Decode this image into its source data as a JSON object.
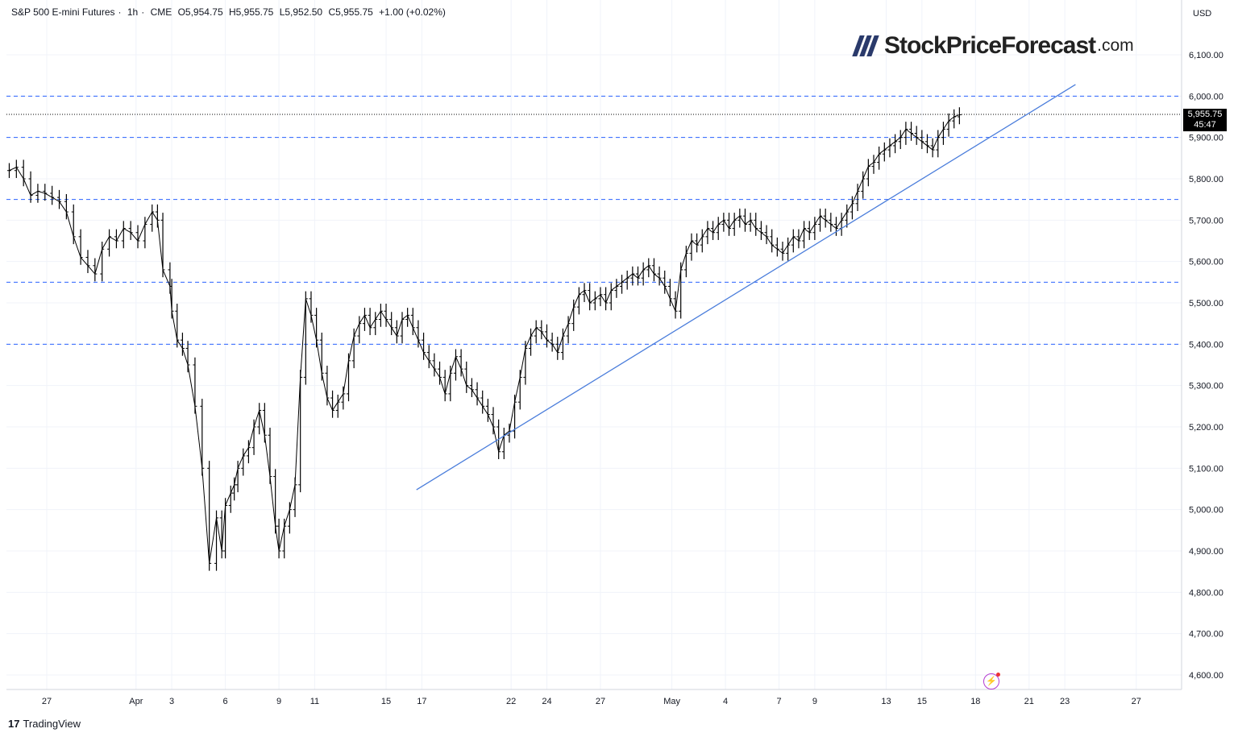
{
  "header": {
    "symbol": "S&P 500 E-mini Futures",
    "interval": "1h",
    "exchange": "CME",
    "open": "O5,954.75",
    "high": "H5,955.75",
    "low": "L5,952.50",
    "close": "C5,955.75",
    "change": "+1.00 (+0.02%)"
  },
  "logo": {
    "name": "StockPriceForecast",
    "tld": ".com"
  },
  "currency": "USD",
  "price_tag": {
    "price": "5,955.75",
    "countdown": "45:47"
  },
  "brand": "TradingView",
  "colors": {
    "candle": "#000000",
    "level_line": "#2962ff",
    "trend_line": "#4a7ddb",
    "last_price_line": "#000000",
    "grid": "#f0f3fa",
    "alert": "#b43bd1"
  },
  "icons": {
    "alert": "lightning-bolt-icon",
    "brand": "tradingview-logo-icon"
  },
  "chart_data": {
    "type": "line",
    "title": "S&P 500 E-mini Futures · 1h · CME",
    "ylim": [
      4540,
      6180
    ],
    "y_ticks": [
      4600,
      4700,
      4800,
      4900,
      5000,
      5100,
      5200,
      5300,
      5400,
      5500,
      5600,
      5700,
      5800,
      5900,
      6000,
      6100
    ],
    "y_tick_labels": [
      "4,600.00",
      "4,700.00",
      "4,800.00",
      "4,900.00",
      "5,000.00",
      "5,100.00",
      "5,200.00",
      "5,300.00",
      "5,400.00",
      "5,500.00",
      "5,600.00",
      "5,700.00",
      "5,800.00",
      "5,900.00",
      "6,000.00",
      "6,100.00"
    ],
    "x_axis": {
      "ticks": [
        {
          "label": "27",
          "day": 0
        },
        {
          "label": "Apr",
          "day": 5
        },
        {
          "label": "3",
          "day": 7
        },
        {
          "label": "6",
          "day": 10
        },
        {
          "label": "9",
          "day": 13
        },
        {
          "label": "11",
          "day": 15
        },
        {
          "label": "15",
          "day": 19
        },
        {
          "label": "17",
          "day": 21
        },
        {
          "label": "22",
          "day": 26
        },
        {
          "label": "24",
          "day": 28
        },
        {
          "label": "27",
          "day": 31
        },
        {
          "label": "May",
          "day": 35
        },
        {
          "label": "4",
          "day": 38
        },
        {
          "label": "7",
          "day": 41
        },
        {
          "label": "9",
          "day": 43
        },
        {
          "label": "13",
          "day": 47
        },
        {
          "label": "15",
          "day": 49
        },
        {
          "label": "18",
          "day": 52
        },
        {
          "label": "21",
          "day": 55
        },
        {
          "label": "23",
          "day": 57
        },
        {
          "label": "27",
          "day": 61
        }
      ]
    },
    "horizontal_levels": [
      6000,
      5900,
      5750,
      5550,
      5400
    ],
    "last_price": 5955.75,
    "trend_line": {
      "start": {
        "day": 20.7,
        "price": 5048
      },
      "end": {
        "day": 57.6,
        "price": 6028
      }
    },
    "series": [
      {
        "days": [
          -2.1,
          -1.7,
          -1.3,
          -0.9,
          -0.5,
          -0.1,
          0.3,
          0.7,
          1.1,
          1.5,
          1.9,
          2.3,
          2.7,
          3.1,
          3.5,
          3.9,
          4.3,
          4.7,
          5.1,
          5.5,
          5.9,
          6.2,
          6.5,
          6.9,
          7.0,
          7.3,
          7.6,
          7.9,
          8.3,
          8.7,
          9.1,
          9.5,
          9.8,
          10.0,
          10.3,
          10.5,
          10.7,
          11.0,
          11.3,
          11.6,
          11.9,
          12.2,
          12.5,
          12.8,
          13.0,
          13.3,
          13.6,
          13.9,
          14.2,
          14.5,
          14.8,
          15.1,
          15.4,
          15.7,
          16.0,
          16.3,
          16.6,
          16.9,
          17.2,
          17.5,
          17.8,
          18.1,
          18.4,
          18.7,
          19.0,
          19.3,
          19.6,
          19.9,
          20.2,
          20.5,
          20.8,
          21.1,
          21.4,
          21.7,
          22.0,
          22.3,
          22.6,
          22.9,
          23.2,
          23.5,
          23.8,
          24.1,
          24.4,
          24.7,
          25.0,
          25.3,
          25.6,
          25.9,
          26.2,
          26.5,
          26.8,
          27.1,
          27.4,
          27.7,
          28.0,
          28.3,
          28.6,
          28.9,
          29.2,
          29.5,
          29.8,
          30.1,
          30.4,
          30.7,
          31.0,
          31.3,
          31.6,
          31.9,
          32.2,
          32.5,
          32.8,
          33.1,
          33.4,
          33.7,
          34.0,
          34.3,
          34.6,
          34.9,
          35.2,
          35.5,
          35.8,
          36.1,
          36.4,
          36.7,
          37.0,
          37.3,
          37.6,
          37.9,
          38.2,
          38.5,
          38.8,
          39.1,
          39.4,
          39.7,
          40.0,
          40.3,
          40.6,
          40.9,
          41.2,
          41.5,
          41.8,
          42.1,
          42.4,
          42.7,
          43.0,
          43.3,
          43.6,
          43.9,
          44.2,
          44.5,
          44.8,
          45.1,
          45.4,
          45.7,
          46.0,
          46.3,
          46.6,
          46.9,
          47.2,
          47.5,
          47.8,
          48.1,
          48.4,
          48.7,
          49.0,
          49.3,
          49.6,
          49.9,
          50.2,
          50.5,
          50.8,
          51.1
        ],
        "close": [
          5820,
          5828,
          5800,
          5760,
          5770,
          5765,
          5755,
          5745,
          5720,
          5660,
          5610,
          5590,
          5570,
          5630,
          5660,
          5650,
          5680,
          5670,
          5650,
          5690,
          5720,
          5700,
          5580,
          5540,
          5480,
          5410,
          5390,
          5350,
          5250,
          5100,
          4870,
          4980,
          4900,
          5010,
          5040,
          5060,
          5100,
          5130,
          5150,
          5200,
          5240,
          5180,
          5080,
          4960,
          4900,
          4960,
          5000,
          5060,
          5320,
          5510,
          5470,
          5410,
          5330,
          5270,
          5240,
          5260,
          5280,
          5360,
          5420,
          5450,
          5470,
          5440,
          5460,
          5480,
          5460,
          5440,
          5420,
          5460,
          5470,
          5440,
          5410,
          5380,
          5360,
          5340,
          5320,
          5280,
          5330,
          5370,
          5340,
          5300,
          5290,
          5270,
          5250,
          5230,
          5200,
          5140,
          5180,
          5190,
          5260,
          5320,
          5390,
          5420,
          5440,
          5430,
          5410,
          5400,
          5380,
          5420,
          5450,
          5490,
          5520,
          5530,
          5500,
          5510,
          5520,
          5500,
          5530,
          5540,
          5550,
          5560,
          5570,
          5560,
          5580,
          5590,
          5570,
          5560,
          5540,
          5510,
          5480,
          5580,
          5620,
          5650,
          5640,
          5660,
          5680,
          5670,
          5690,
          5700,
          5680,
          5700,
          5710,
          5690,
          5700,
          5680,
          5670,
          5660,
          5640,
          5630,
          5620,
          5640,
          5660,
          5650,
          5680,
          5670,
          5690,
          5710,
          5700,
          5690,
          5680,
          5700,
          5720,
          5740,
          5770,
          5800,
          5830,
          5840,
          5860,
          5870,
          5880,
          5890,
          5900,
          5920,
          5910,
          5900,
          5890,
          5880,
          5870,
          5900,
          5920,
          5940,
          5950,
          5955
        ]
      }
    ]
  }
}
